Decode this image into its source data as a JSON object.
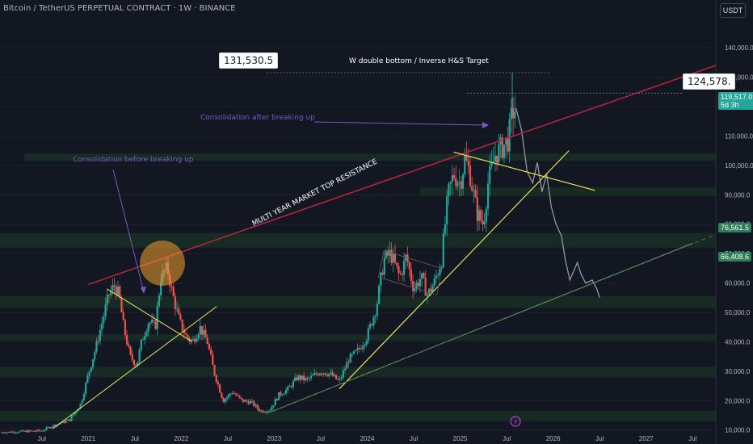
{
  "header": {
    "title": "Bitcoin / TetherUS PERPETUAL CONTRACT · 1W · BINANCE",
    "unit": "USDT"
  },
  "labels": {
    "target_box": "131,530.5",
    "target_text": "W double bottom / Inverse H&S Target",
    "ath_box": "124,578.",
    "current_price": "119,517.0",
    "current_countdown": "5d 3h",
    "tag_a": "76,561.5",
    "tag_b": "66,408.6",
    "consolidation_before": "Consolidation before breaking up",
    "consolidation_after": "Consolidation after breaking up",
    "resistance": "MULTI YEAR MARKET TOP  RESISTANCE"
  },
  "colors": {
    "background": "#131722",
    "up": "#26a69a",
    "down": "#ef5350",
    "resistance": "#b2263f",
    "trendline": "#e8e45a",
    "support": "#5fa957",
    "projection": "#9598a1",
    "annotation": "#7e57c2",
    "zone": "#1c3a26",
    "highlight": "#f0a030"
  },
  "chart_data": {
    "type": "candlestick",
    "y_ticks": [
      10000,
      20000,
      30000,
      40000,
      50000,
      60000,
      70000,
      80000,
      90000,
      100000,
      110000,
      120000,
      130000,
      140000
    ],
    "y_tick_labels": [
      "10,000.0",
      "20,000.0",
      "30,000.0",
      "40,000.0",
      "50,000.0",
      "60,000.0",
      "70,000.0",
      "80,000.0",
      "90,000.0",
      "100,000.0",
      "110,000.0",
      "120,000.0",
      "130,000.0",
      "140,000.0"
    ],
    "x_ticks": [
      2020.5,
      2021,
      2021.5,
      2022,
      2022.5,
      2023,
      2023.5,
      2024,
      2024.5,
      2025,
      2025.5,
      2026,
      2026.5,
      2027,
      2027.5
    ],
    "x_tick_labels": [
      "Jul",
      "2021",
      "Jul",
      "2022",
      "Jul",
      "2023",
      "Jul",
      "2024",
      "Jul",
      "2025",
      "Jul",
      "2026",
      "Jul",
      "2027",
      "Jul"
    ],
    "ylim": [
      8000,
      148000
    ],
    "xlim": [
      2020.05,
      2027.75
    ],
    "price_path": [
      [
        2020.05,
        9200
      ],
      [
        2020.3,
        9500
      ],
      [
        2020.5,
        9800
      ],
      [
        2020.62,
        11500
      ],
      [
        2020.8,
        13500
      ],
      [
        2020.92,
        19000
      ],
      [
        2021.0,
        29000
      ],
      [
        2021.08,
        38000
      ],
      [
        2021.15,
        47000
      ],
      [
        2021.22,
        56000
      ],
      [
        2021.28,
        59000
      ],
      [
        2021.33,
        56000
      ],
      [
        2021.38,
        45000
      ],
      [
        2021.45,
        35000
      ],
      [
        2021.52,
        32000
      ],
      [
        2021.58,
        41000
      ],
      [
        2021.65,
        47000
      ],
      [
        2021.72,
        45000
      ],
      [
        2021.78,
        62000
      ],
      [
        2021.85,
        65000
      ],
      [
        2021.9,
        57000
      ],
      [
        2021.98,
        47000
      ],
      [
        2022.05,
        42000
      ],
      [
        2022.12,
        40000
      ],
      [
        2022.2,
        45000
      ],
      [
        2022.28,
        40000
      ],
      [
        2022.35,
        30000
      ],
      [
        2022.45,
        20000
      ],
      [
        2022.55,
        23000
      ],
      [
        2022.65,
        20000
      ],
      [
        2022.75,
        19500
      ],
      [
        2022.85,
        16500
      ],
      [
        2022.95,
        16800
      ],
      [
        2023.05,
        22000
      ],
      [
        2023.15,
        24000
      ],
      [
        2023.25,
        28000
      ],
      [
        2023.35,
        27000
      ],
      [
        2023.5,
        30000
      ],
      [
        2023.6,
        29000
      ],
      [
        2023.7,
        26500
      ],
      [
        2023.8,
        34000
      ],
      [
        2023.9,
        37000
      ],
      [
        2024.0,
        42000
      ],
      [
        2024.1,
        52000
      ],
      [
        2024.18,
        68000
      ],
      [
        2024.25,
        70000
      ],
      [
        2024.35,
        62000
      ],
      [
        2024.42,
        69000
      ],
      [
        2024.5,
        58000
      ],
      [
        2024.58,
        62000
      ],
      [
        2024.65,
        56000
      ],
      [
        2024.72,
        60000
      ],
      [
        2024.8,
        68000
      ],
      [
        2024.87,
        90000
      ],
      [
        2024.93,
        97000
      ],
      [
        2025.0,
        94000
      ],
      [
        2025.05,
        102000
      ],
      [
        2025.1,
        98000
      ],
      [
        2025.18,
        84000
      ],
      [
        2025.25,
        80000
      ],
      [
        2025.3,
        94000
      ],
      [
        2025.38,
        104000
      ],
      [
        2025.45,
        106000
      ],
      [
        2025.52,
        109000
      ],
      [
        2025.56,
        118000
      ],
      [
        2025.6,
        119517
      ]
    ],
    "projection_path": [
      [
        2025.6,
        119517
      ],
      [
        2025.66,
        112000
      ],
      [
        2025.72,
        98000
      ],
      [
        2025.78,
        94000
      ],
      [
        2025.83,
        101000
      ],
      [
        2025.88,
        91000
      ],
      [
        2025.93,
        97000
      ],
      [
        2025.98,
        86000
      ],
      [
        2026.03,
        80000
      ],
      [
        2026.09,
        76000
      ],
      [
        2026.13,
        68000
      ],
      [
        2026.18,
        61000
      ],
      [
        2026.22,
        64000
      ],
      [
        2026.26,
        67000
      ],
      [
        2026.3,
        63000
      ],
      [
        2026.35,
        60000
      ],
      [
        2026.42,
        61000
      ],
      [
        2026.47,
        58000
      ],
      [
        2026.5,
        55000
      ]
    ],
    "annotations": {
      "target_value": 131530.5,
      "ath_value": 124578,
      "current_value": 119517.0,
      "levels": [
        76561.5,
        66408.6
      ]
    }
  }
}
